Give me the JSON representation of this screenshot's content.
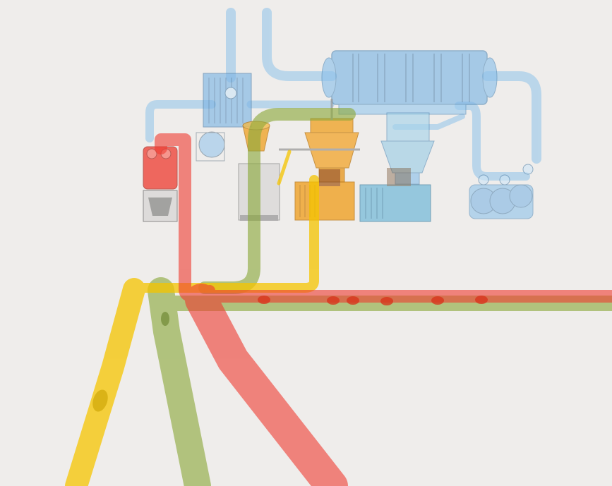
{
  "scene": {
    "kind": "industrial process flow illustration",
    "background_color": "#efedeb",
    "text_labels": []
  },
  "colors": {
    "red_line": "#ee3b30",
    "yellow_line": "#f5c400",
    "green_line": "#8aa83a",
    "blue_duct": "#8ec2ea",
    "orange_equipment": "#f0a020",
    "teal_equipment": "#6fb7d8",
    "steel_gray": "#8a8a8a"
  },
  "pipelines": [
    {
      "name": "red-line",
      "color_key": "red_line"
    },
    {
      "name": "yellow-line",
      "color_key": "yellow_line"
    },
    {
      "name": "green-line",
      "color_key": "green_line"
    },
    {
      "name": "blue-duct",
      "color_key": "blue_duct"
    }
  ],
  "equipment": [
    "red-inlet-hopper",
    "blue-fan-box",
    "gray-dryer-unit",
    "orange-cyclone-separator",
    "orange-mill-machine",
    "teal-cyclone-separator",
    "teal-mill-machine",
    "baghouse-filter",
    "blue-exhaust-fans"
  ]
}
